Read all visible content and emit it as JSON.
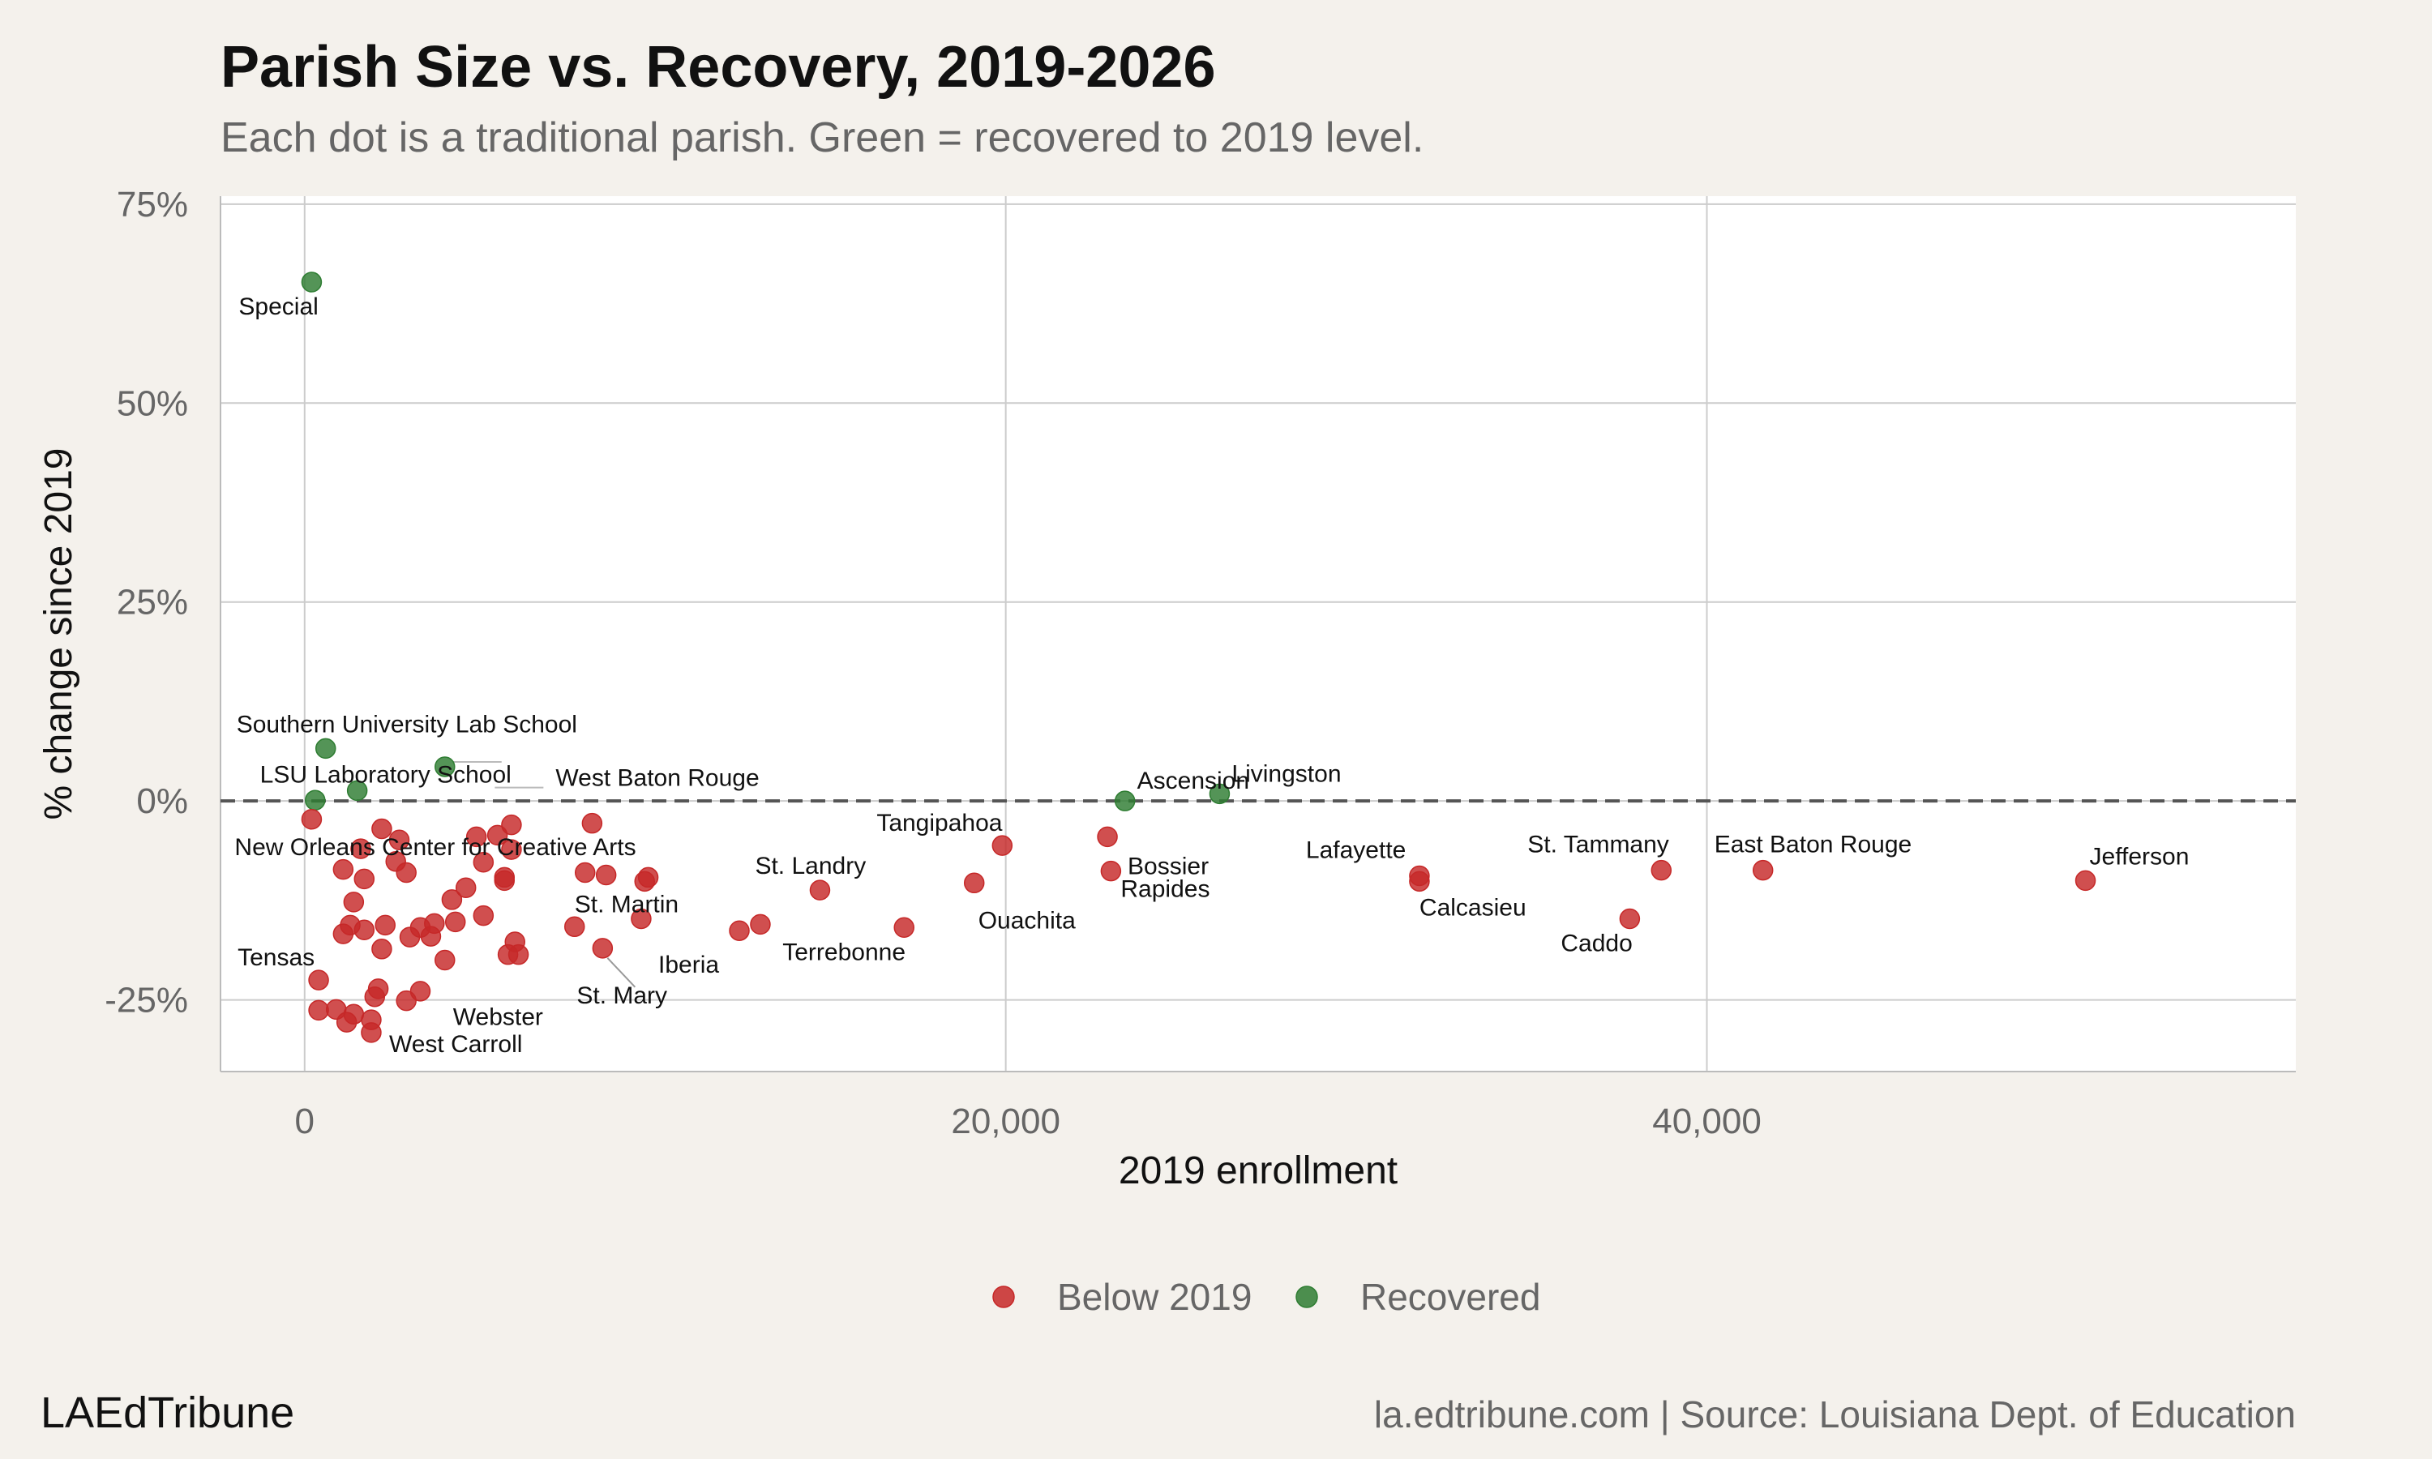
{
  "header": {
    "title": "Parish Size vs. Recovery, 2019-2026",
    "subtitle": "Each dot is a traditional parish. Green = recovered to 2019 level."
  },
  "footer": {
    "brand": "LAEdTribune",
    "source": "la.edtribune.com | Source: Louisiana Dept. of Education"
  },
  "colors": {
    "background": "#f4f1ec",
    "below": "#c62828",
    "recovered": "#2e7d32",
    "grid": "#cccccc",
    "reference_line": "#555555"
  },
  "chart_data": {
    "type": "scatter",
    "title": "Parish Size vs. Recovery, 2019-2026",
    "subtitle": "Each dot is a traditional parish. Green = recovered to 2019 level.",
    "xlabel": "2019 enrollment",
    "ylabel": "% change since 2019",
    "xlim": [
      -2400,
      56800
    ],
    "ylim": [
      -34,
      76
    ],
    "x_ticks": [
      0,
      20000,
      40000
    ],
    "x_tick_labels": [
      "0",
      "20,000",
      "40,000"
    ],
    "y_ticks": [
      75,
      50,
      25,
      0,
      -25
    ],
    "y_tick_labels": [
      "75%",
      "50%",
      "25%",
      "0%",
      "-25%"
    ],
    "reference_line": {
      "y": 0,
      "style": "dashed"
    },
    "grid": true,
    "legend": {
      "position": "bottom",
      "entries": [
        {
          "key": "below",
          "label": "Below 2019"
        },
        {
          "key": "recovered",
          "label": "Recovered"
        }
      ]
    },
    "points": [
      {
        "label": "Special",
        "x": 200,
        "y": 65.2,
        "group": "recovered"
      },
      {
        "label": "Southern University Lab School",
        "x": 600,
        "y": 6.6,
        "group": "recovered"
      },
      {
        "label": "LSU Laboratory School",
        "x": 1500,
        "y": 1.3,
        "group": "recovered"
      },
      {
        "label": "",
        "x": 4000,
        "y": 4.3,
        "group": "recovered"
      },
      {
        "label": "",
        "x": 300,
        "y": 0.1,
        "group": "recovered"
      },
      {
        "label": "Ascension",
        "x": 23400,
        "y": 0.0,
        "group": "recovered"
      },
      {
        "label": "Livingston",
        "x": 26100,
        "y": 0.9,
        "group": "recovered"
      },
      {
        "label": "New Orleans Center for Creative Arts",
        "x": 200,
        "y": -2.3,
        "group": "below"
      },
      {
        "label": "West Baton Rouge",
        "x": 8200,
        "y": -2.8,
        "group": "below"
      },
      {
        "label": "Tangipahoa",
        "x": 19900,
        "y": -5.6,
        "group": "below"
      },
      {
        "label": "Bossier",
        "x": 22900,
        "y": -4.5,
        "group": "below"
      },
      {
        "label": "Rapides",
        "x": 23000,
        "y": -8.8,
        "group": "below"
      },
      {
        "label": "Ouachita",
        "x": 19100,
        "y": -10.3,
        "group": "below"
      },
      {
        "label": "Lafayette",
        "x": 31800,
        "y": -9.4,
        "group": "below"
      },
      {
        "label": "Calcasieu",
        "x": 31800,
        "y": -10.1,
        "group": "below"
      },
      {
        "label": "St. Tammany",
        "x": 38700,
        "y": -8.7,
        "group": "below"
      },
      {
        "label": "East Baton Rouge",
        "x": 41600,
        "y": -8.7,
        "group": "below"
      },
      {
        "label": "Jefferson",
        "x": 50800,
        "y": -10.0,
        "group": "below"
      },
      {
        "label": "Caddo",
        "x": 37800,
        "y": -14.8,
        "group": "below"
      },
      {
        "label": "St. Landry",
        "x": 14700,
        "y": -11.2,
        "group": "below"
      },
      {
        "label": "Terrebonne",
        "x": 17100,
        "y": -15.9,
        "group": "below"
      },
      {
        "label": "Iberia",
        "x": 12400,
        "y": -16.3,
        "group": "below"
      },
      {
        "label": "",
        "x": 13000,
        "y": -15.5,
        "group": "below"
      },
      {
        "label": "St. Martin",
        "x": 7700,
        "y": -15.8,
        "group": "below"
      },
      {
        "label": "St. Mary",
        "x": 8500,
        "y": -18.5,
        "group": "below"
      },
      {
        "label": "Webster",
        "x": 4000,
        "y": -20.0,
        "group": "below"
      },
      {
        "label": "Tensas",
        "x": 400,
        "y": -22.5,
        "group": "below"
      },
      {
        "label": "West Carroll",
        "x": 1900,
        "y": -29.1,
        "group": "below"
      },
      {
        "label": "",
        "x": 1600,
        "y": -6.0,
        "group": "below"
      },
      {
        "label": "",
        "x": 2200,
        "y": -3.5,
        "group": "below"
      },
      {
        "label": "",
        "x": 2700,
        "y": -4.9,
        "group": "below"
      },
      {
        "label": "",
        "x": 2600,
        "y": -7.6,
        "group": "below"
      },
      {
        "label": "",
        "x": 2900,
        "y": -9.0,
        "group": "below"
      },
      {
        "label": "",
        "x": 1100,
        "y": -8.6,
        "group": "below"
      },
      {
        "label": "",
        "x": 1700,
        "y": -9.8,
        "group": "below"
      },
      {
        "label": "",
        "x": 1400,
        "y": -12.7,
        "group": "below"
      },
      {
        "label": "",
        "x": 1300,
        "y": -15.6,
        "group": "below"
      },
      {
        "label": "",
        "x": 1100,
        "y": -16.7,
        "group": "below"
      },
      {
        "label": "",
        "x": 1700,
        "y": -16.2,
        "group": "below"
      },
      {
        "label": "",
        "x": 2300,
        "y": -15.6,
        "group": "below"
      },
      {
        "label": "",
        "x": 2200,
        "y": -18.6,
        "group": "below"
      },
      {
        "label": "",
        "x": 3000,
        "y": -17.1,
        "group": "below"
      },
      {
        "label": "",
        "x": 3300,
        "y": -15.9,
        "group": "below"
      },
      {
        "label": "",
        "x": 3600,
        "y": -17.0,
        "group": "below"
      },
      {
        "label": "",
        "x": 3700,
        "y": -15.4,
        "group": "below"
      },
      {
        "label": "",
        "x": 4200,
        "y": -12.4,
        "group": "below"
      },
      {
        "label": "",
        "x": 4600,
        "y": -10.9,
        "group": "below"
      },
      {
        "label": "",
        "x": 4300,
        "y": -15.2,
        "group": "below"
      },
      {
        "label": "",
        "x": 5100,
        "y": -14.4,
        "group": "below"
      },
      {
        "label": "",
        "x": 5100,
        "y": -7.7,
        "group": "below"
      },
      {
        "label": "",
        "x": 4900,
        "y": -4.5,
        "group": "below"
      },
      {
        "label": "",
        "x": 5500,
        "y": -4.3,
        "group": "below"
      },
      {
        "label": "",
        "x": 5700,
        "y": -9.6,
        "group": "below"
      },
      {
        "label": "",
        "x": 5700,
        "y": -10.0,
        "group": "below"
      },
      {
        "label": "",
        "x": 5900,
        "y": -6.1,
        "group": "below"
      },
      {
        "label": "",
        "x": 5900,
        "y": -3.0,
        "group": "below"
      },
      {
        "label": "",
        "x": 6000,
        "y": -17.7,
        "group": "below"
      },
      {
        "label": "",
        "x": 5800,
        "y": -19.3,
        "group": "below"
      },
      {
        "label": "",
        "x": 6100,
        "y": -19.3,
        "group": "below"
      },
      {
        "label": "",
        "x": 8000,
        "y": -9.0,
        "group": "below"
      },
      {
        "label": "",
        "x": 8600,
        "y": -9.3,
        "group": "below"
      },
      {
        "label": "",
        "x": 9700,
        "y": -10.1,
        "group": "below"
      },
      {
        "label": "",
        "x": 9800,
        "y": -9.6,
        "group": "below"
      },
      {
        "label": "",
        "x": 9600,
        "y": -14.8,
        "group": "below"
      },
      {
        "label": "",
        "x": 3300,
        "y": -23.9,
        "group": "below"
      },
      {
        "label": "",
        "x": 2100,
        "y": -23.6,
        "group": "below"
      },
      {
        "label": "",
        "x": 2000,
        "y": -24.6,
        "group": "below"
      },
      {
        "label": "",
        "x": 2900,
        "y": -25.1,
        "group": "below"
      },
      {
        "label": "",
        "x": 400,
        "y": -26.3,
        "group": "below"
      },
      {
        "label": "",
        "x": 900,
        "y": -26.2,
        "group": "below"
      },
      {
        "label": "",
        "x": 1400,
        "y": -26.8,
        "group": "below"
      },
      {
        "label": "",
        "x": 1200,
        "y": -27.8,
        "group": "below"
      },
      {
        "label": "",
        "x": 1900,
        "y": -27.5,
        "group": "below"
      }
    ]
  }
}
